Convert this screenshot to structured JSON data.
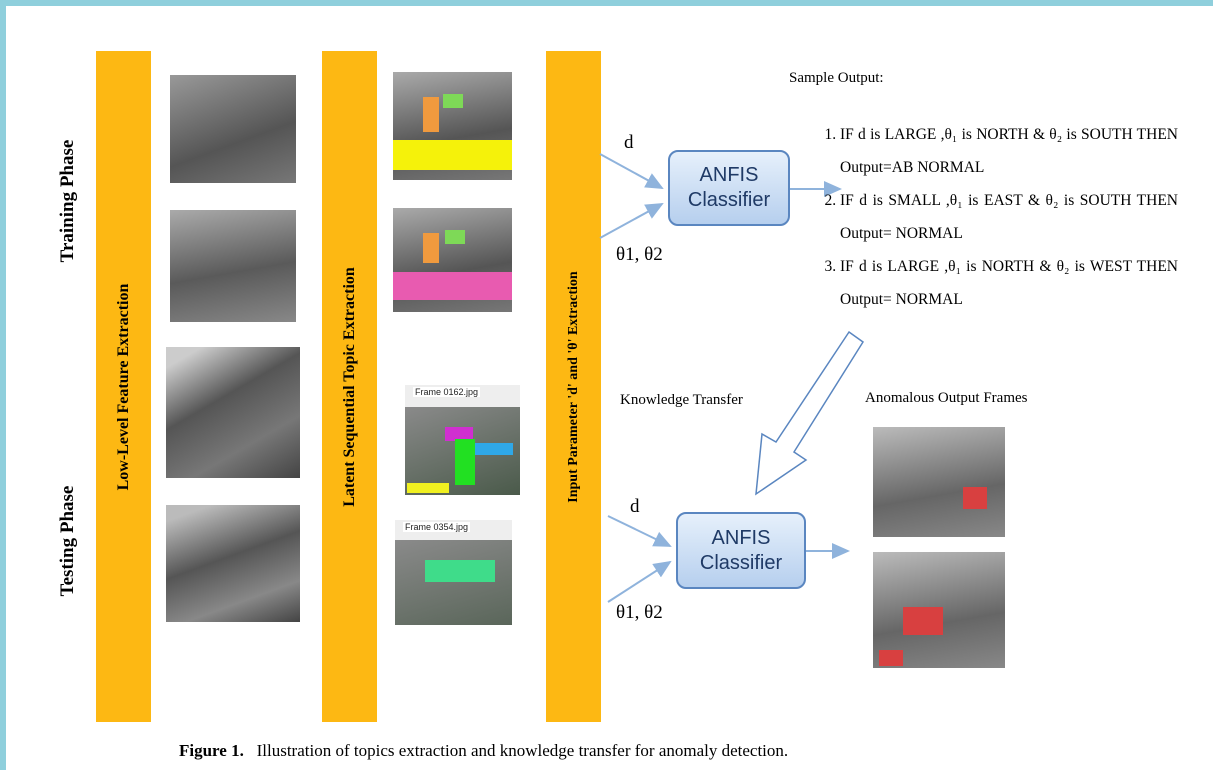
{
  "phases": {
    "training": "Training Phase",
    "testing": "Testing Phase"
  },
  "stages": [
    "Low-Level Feature Extraction",
    "Latent  Sequential Topic Extraction",
    "Input Parameter 'd' and 'θ' Extraction"
  ],
  "frame_labels": [
    "Frame 0162.jpg",
    "Frame 0354.jpg"
  ],
  "training": {
    "input_d": "d",
    "input_theta": "θ1, θ2",
    "classifier": "ANFIS Classifier"
  },
  "sample_output": {
    "title": "Sample Output:",
    "rules": [
      "IF d is LARGE ,θ₁ is NORTH  & θ₂ is SOUTH THEN  Output=AB NORMAL",
      "IF d is SMALL ,θ₁ is EAST  & θ₂ is SOUTH THEN Output= NORMAL",
      "IF d is LARGE ,θ₁ is NORTH  & θ₂ is WEST THEN Output= NORMAL"
    ]
  },
  "knowledge_transfer": "Knowledge Transfer",
  "anomalous_output": "Anomalous Output Frames",
  "testing": {
    "input_d": "d",
    "input_theta": "θ1, θ2",
    "classifier": "ANFIS Classifier"
  },
  "caption": {
    "label": "Figure 1.",
    "text": "Illustration of topics extraction and knowledge transfer for anomaly detection."
  }
}
